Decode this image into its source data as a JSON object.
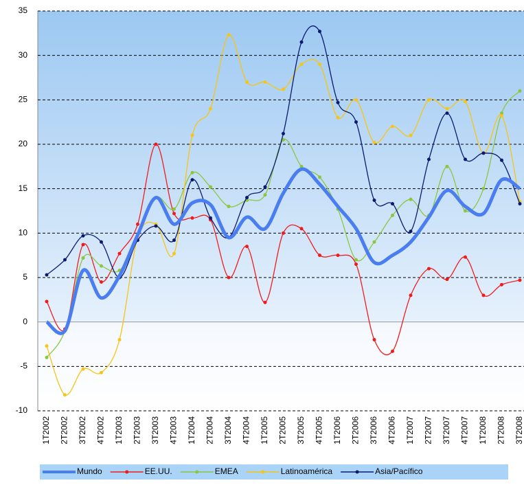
{
  "chart_data": {
    "type": "line",
    "smooth": true,
    "grid": true,
    "legend": "bottom",
    "categories": [
      "1T2002",
      "2T2002",
      "3T2002",
      "4T2002",
      "1T2003",
      "2T2003",
      "3T2003",
      "4T2003",
      "1T2004",
      "2T2004",
      "3T2004",
      "4T2004",
      "1T2005",
      "2T2005",
      "3T2005",
      "4T2005",
      "1T2006",
      "2T2006",
      "3T2006",
      "4T2006",
      "1T2007",
      "2T2007",
      "3T2007",
      "4T2007",
      "1T2008",
      "2T2008",
      "3T2008"
    ],
    "ylim": [
      -10,
      35
    ],
    "yticks": [
      -10,
      -5,
      0,
      5,
      10,
      15,
      20,
      25,
      30,
      35
    ],
    "series": [
      {
        "name": "Mundo",
        "color": "#4a7ef0",
        "markers": false,
        "values": [
          0,
          -1,
          5.8,
          2.7,
          5.2,
          9.8,
          14,
          11,
          13.4,
          13.2,
          9.5,
          11.8,
          10.5,
          14.5,
          17.2,
          15.5,
          13,
          10.5,
          6.7,
          7.5,
          9,
          11.8,
          14.8,
          13,
          12.2,
          16,
          15
        ]
      },
      {
        "name": "EE.UU.",
        "color": "#ee1c1c",
        "markers": true,
        "values": [
          2.3,
          -0.8,
          8.7,
          4.5,
          7.7,
          11,
          20,
          12.2,
          11.7,
          11.5,
          5,
          8.5,
          2.2,
          10,
          10.5,
          7.5,
          7.5,
          6.5,
          -2,
          -3.3,
          3,
          6,
          4.8,
          7.3,
          3,
          4.2,
          4.7
        ]
      },
      {
        "name": "EMEA",
        "color": "#8cc63f",
        "markers": true,
        "values": [
          -4,
          -1,
          7.2,
          6.3,
          5.8,
          9.5,
          14,
          12.7,
          16.8,
          15.2,
          13,
          13.7,
          14.3,
          20.5,
          17.5,
          16.3,
          12.7,
          7,
          9,
          12,
          13.8,
          12,
          17.5,
          12.5,
          15,
          23.5,
          26
        ]
      },
      {
        "name": "Latinoamérica",
        "color": "#f5c518",
        "markers": true,
        "values": [
          -2.7,
          -8.2,
          -5.3,
          -5.7,
          -2,
          9.5,
          11,
          7.7,
          21,
          24,
          32.3,
          27,
          27,
          26.2,
          29,
          29,
          23,
          25,
          20.2,
          22,
          21,
          25,
          24,
          24.8,
          19,
          23.2,
          13.5
        ]
      },
      {
        "name": "Asia/Pacífico",
        "color": "#0a1a6e",
        "markers": true,
        "values": [
          5.3,
          7,
          9.7,
          9,
          5,
          9.2,
          10.8,
          9.2,
          16,
          11.7,
          9.5,
          14,
          15.2,
          21.2,
          31.5,
          32.7,
          24.7,
          22.5,
          13.7,
          13.3,
          10.2,
          18.3,
          23.5,
          18.3,
          19,
          18.2,
          13.3
        ]
      }
    ]
  }
}
